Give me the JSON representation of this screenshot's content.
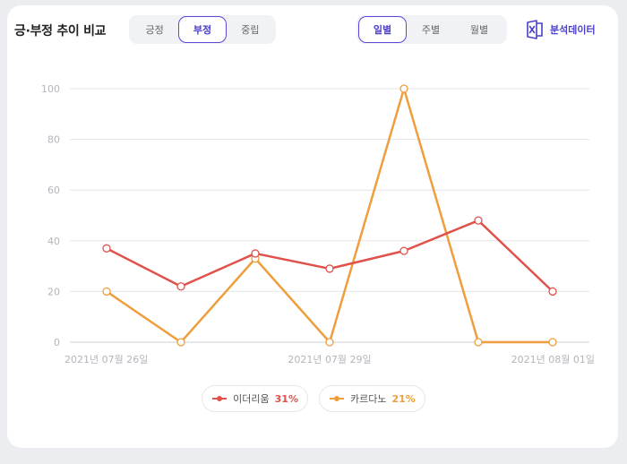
{
  "header": {
    "title": "긍·부정 추이 비교",
    "sentiment_tabs": [
      {
        "label": "긍정",
        "active": false
      },
      {
        "label": "부정",
        "active": true
      },
      {
        "label": "중립",
        "active": false
      }
    ],
    "period_tabs": [
      {
        "label": "일별",
        "active": true
      },
      {
        "label": "주별",
        "active": false
      },
      {
        "label": "월별",
        "active": false
      }
    ],
    "export_label": "분석데이터",
    "export_icon": "excel-icon"
  },
  "colors": {
    "accent": "#4a3fc9",
    "series1": "#e0514a",
    "series2": "#ee9e3d"
  },
  "chart_data": {
    "type": "line",
    "x": [
      "2021-07-26",
      "2021-07-27",
      "2021-07-28",
      "2021-07-29",
      "2021-07-30",
      "2021-07-31",
      "2021-08-01"
    ],
    "x_tick_labels": [
      "2021년 07월 26일",
      "2021년 07월 29일",
      "2021년 08월 01일"
    ],
    "y_ticks": [
      "0",
      "20",
      "40",
      "60",
      "80",
      "100"
    ],
    "ylim": [
      0,
      100
    ],
    "grid": true,
    "legend_position": "bottom-center",
    "series": [
      {
        "name": "이더리움",
        "percent": "31%",
        "color": "#e0514a",
        "values": [
          37,
          22,
          35,
          29,
          36,
          48,
          20
        ]
      },
      {
        "name": "카르다노",
        "percent": "21%",
        "color": "#ee9e3d",
        "values": [
          20,
          0,
          33,
          0,
          100,
          0,
          0
        ]
      }
    ]
  }
}
